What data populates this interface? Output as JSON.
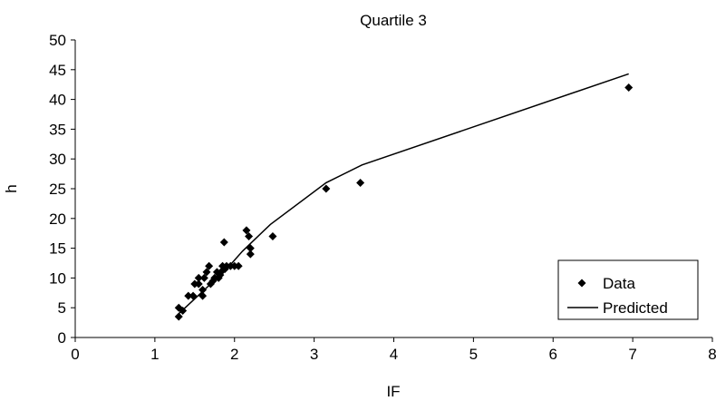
{
  "chart_data": {
    "type": "scatter",
    "title": "Quartile 3",
    "xlabel": "IF",
    "ylabel": "h",
    "xlim": [
      0,
      8
    ],
    "ylim": [
      0,
      50
    ],
    "xticks": [
      "0",
      "1",
      "2",
      "3",
      "4",
      "5",
      "6",
      "7",
      "8"
    ],
    "yticks": [
      "0",
      "5",
      "10",
      "15",
      "20",
      "25",
      "30",
      "35",
      "40",
      "45",
      "50"
    ],
    "grid": false,
    "legend_position": "bottom-right",
    "series": [
      {
        "name": "Data",
        "kind": "scatter",
        "marker": "diamond",
        "color": "#000000",
        "points": [
          [
            1.3,
            5
          ],
          [
            1.3,
            3.5
          ],
          [
            1.35,
            4.5
          ],
          [
            1.42,
            7
          ],
          [
            1.48,
            7
          ],
          [
            1.5,
            9
          ],
          [
            1.55,
            9
          ],
          [
            1.55,
            10
          ],
          [
            1.6,
            8
          ],
          [
            1.6,
            7
          ],
          [
            1.62,
            10
          ],
          [
            1.65,
            11
          ],
          [
            1.68,
            12
          ],
          [
            1.7,
            9
          ],
          [
            1.73,
            9.5
          ],
          [
            1.75,
            10
          ],
          [
            1.78,
            11
          ],
          [
            1.8,
            10
          ],
          [
            1.82,
            10.5
          ],
          [
            1.83,
            11
          ],
          [
            1.85,
            12
          ],
          [
            1.87,
            16
          ],
          [
            1.88,
            11.5
          ],
          [
            1.9,
            12
          ],
          [
            1.95,
            12
          ],
          [
            2.0,
            12
          ],
          [
            2.05,
            12
          ],
          [
            2.15,
            18
          ],
          [
            2.18,
            17
          ],
          [
            2.2,
            15
          ],
          [
            2.2,
            14
          ],
          [
            2.48,
            17
          ],
          [
            3.15,
            25
          ],
          [
            3.58,
            26
          ],
          [
            6.95,
            42
          ]
        ]
      },
      {
        "name": "Predicted",
        "kind": "line",
        "color": "#000000",
        "points": [
          [
            1.3,
            4
          ],
          [
            1.5,
            6.5
          ],
          [
            1.7,
            9
          ],
          [
            1.9,
            11.5
          ],
          [
            2.1,
            14.5
          ],
          [
            2.45,
            19
          ],
          [
            3.15,
            26
          ],
          [
            3.6,
            29
          ],
          [
            6.95,
            44.3
          ]
        ]
      }
    ]
  }
}
